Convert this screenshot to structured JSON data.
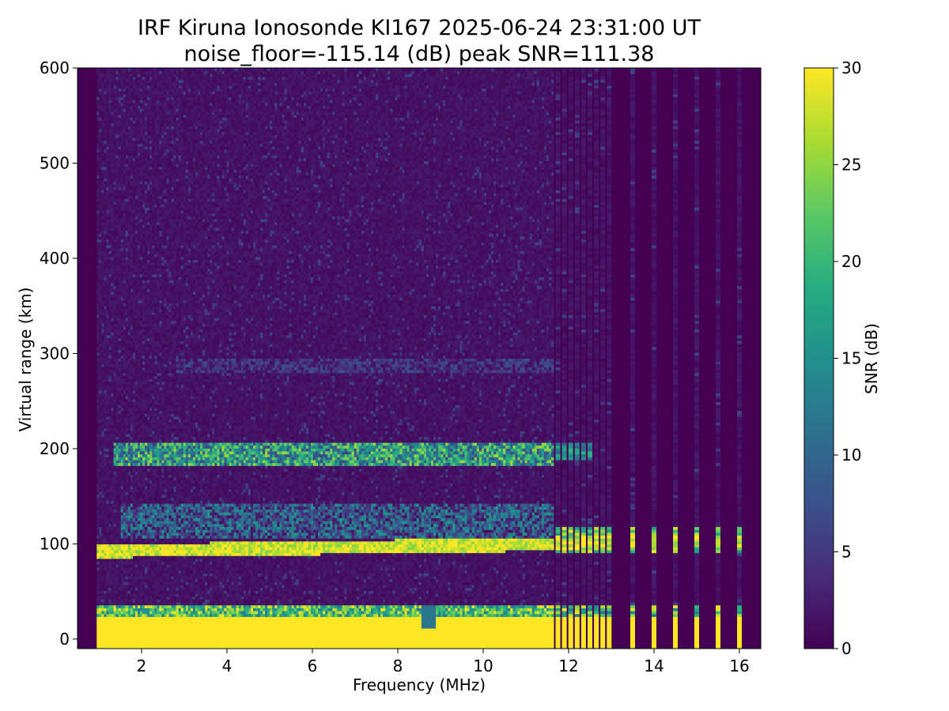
{
  "chart_data": {
    "type": "heatmap",
    "title": "IRF Kiruna Ionosonde KI167 2025-06-24 23:31:00  UT",
    "subtitle": "noise_floor=-115.14 (dB) peak SNR=111.38",
    "xlabel": "Frequency (MHz)",
    "ylabel": "Virtual range (km)",
    "xlim": [
      0.5,
      16.5
    ],
    "ylim": [
      -10,
      600
    ],
    "xticks": [
      "2",
      "4",
      "6",
      "8",
      "10",
      "12",
      "14",
      "16"
    ],
    "yticks": [
      "0",
      "100",
      "200",
      "300",
      "400",
      "500",
      "600"
    ],
    "colorbar": {
      "label": "SNR (dB)",
      "range": [
        0,
        30
      ],
      "ticks": [
        "0",
        "5",
        "10",
        "15",
        "20",
        "25",
        "30"
      ],
      "colormap": "viridis"
    },
    "background_level": 1.5,
    "dense_sweep_mhz": [
      0.95,
      11.65
    ],
    "sparse_sweep_mhz": [
      11.75,
      11.9,
      12.05,
      12.2,
      12.35,
      12.5,
      12.65,
      12.8,
      12.95,
      13.5,
      14.0,
      14.5,
      15.0,
      15.5,
      16.0
    ],
    "traces": [
      {
        "name": "ground echo",
        "freq_mhz": [
          0.95,
          16.1
        ],
        "range_km": [
          -10,
          35
        ],
        "snr_db": 30
      },
      {
        "name": "E-layer trace",
        "freq_mhz": [
          1.1,
          16.1
        ],
        "range_km": [
          85,
          105
        ],
        "snr_db": 30
      },
      {
        "name": "E-layer spread",
        "freq_mhz": [
          1.5,
          11.6
        ],
        "range_km": [
          105,
          140
        ],
        "snr_db": 12
      },
      {
        "name": "second-hop E trace",
        "freq_mhz": [
          1.3,
          11.6
        ],
        "range_km": [
          180,
          205
        ],
        "snr_db": 20
      },
      {
        "name": "third-hop E trace",
        "freq_mhz": [
          2.8,
          11.6
        ],
        "range_km": [
          278,
          292
        ],
        "snr_db": 6
      }
    ]
  }
}
